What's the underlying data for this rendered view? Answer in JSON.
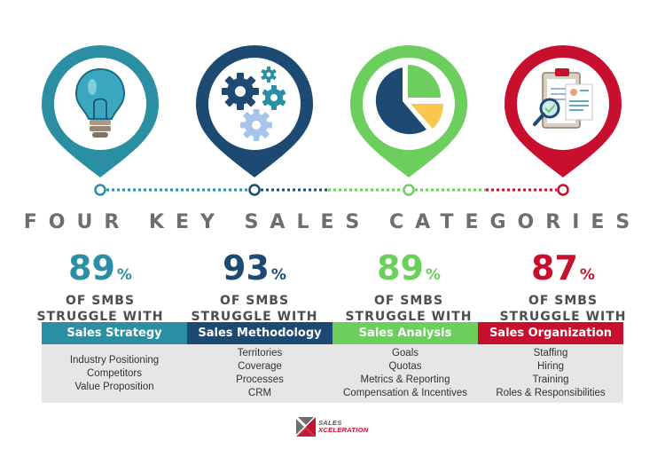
{
  "title": "FOUR KEY SALES CATEGORIES",
  "colors": {
    "teal": "#2b8fa4",
    "navy": "#1c4a73",
    "green": "#6ccf5d",
    "red": "#c8102e",
    "gray_text": "#6d6e71",
    "panel": "#e6e6e7"
  },
  "categories": [
    {
      "value": "89",
      "unit": "%",
      "line1": "OF SMBS",
      "line2": "STRUGGLE WITH",
      "name": "Sales Strategy",
      "icon": "lightbulb-icon",
      "items": [
        "Industry Positioning",
        "Competitors",
        "Value Proposition"
      ]
    },
    {
      "value": "93",
      "unit": "%",
      "line1": "OF SMBS",
      "line2": "STRUGGLE WITH",
      "name": "Sales Methodology",
      "icon": "gears-icon",
      "items": [
        "Territories",
        "Coverage",
        "Processes",
        "CRM"
      ]
    },
    {
      "value": "89",
      "unit": "%",
      "line1": "OF SMBS",
      "line2": "STRUGGLE WITH",
      "name": "Sales Analysis",
      "icon": "pie-chart-icon",
      "items": [
        "Goals",
        "Quotas",
        "Metrics & Reporting",
        "Compensation & Incentives"
      ]
    },
    {
      "value": "87",
      "unit": "%",
      "line1": "OF SMBS",
      "line2": "STRUGGLE WITH",
      "name": "Sales Organization",
      "icon": "clipboard-magnifier-icon",
      "items": [
        "Staffing",
        "Hiring",
        "Training",
        "Roles & Responsibilities"
      ]
    }
  ],
  "logo": {
    "line1": "SALES",
    "line2": "XCELERATION"
  }
}
